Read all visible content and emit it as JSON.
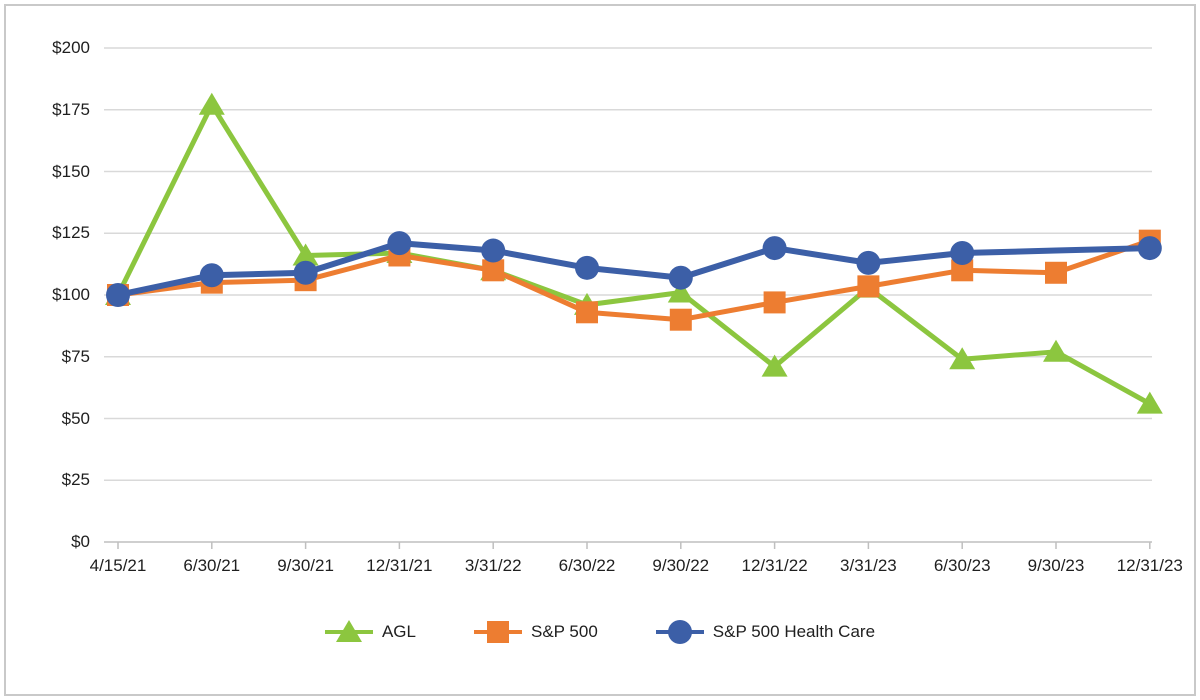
{
  "chart_data": {
    "type": "line",
    "title": "",
    "xlabel": "",
    "ylabel": "",
    "ylim": [
      0,
      200
    ],
    "y_tick_step": 25,
    "y_tick_prefix": "$",
    "y_tick_labels": [
      "$0",
      "$25",
      "$50",
      "$75",
      "$100",
      "$125",
      "$150",
      "$175",
      "$200"
    ],
    "grid": true,
    "legend_position": "bottom",
    "categories": [
      "4/15/21",
      "6/30/21",
      "9/30/21",
      "12/31/21",
      "3/31/22",
      "6/30/22",
      "9/30/22",
      "12/31/22",
      "3/31/23",
      "6/30/23",
      "9/30/23",
      "12/31/23"
    ],
    "series": [
      {
        "name": "AGL",
        "marker": "triangle",
        "color": "#8CC63F",
        "line_width": 5,
        "values": [
          100,
          177,
          116,
          117,
          110,
          96,
          101,
          71,
          103,
          74,
          77,
          56
        ]
      },
      {
        "name": "S&P 500",
        "marker": "square",
        "color": "#ED7D31",
        "line_width": 5,
        "values": [
          100,
          105,
          106,
          116,
          110,
          93,
          90,
          97,
          103.5,
          110,
          109,
          122
        ]
      },
      {
        "name": "S&P 500 Health Care",
        "marker": "circle",
        "color": "#3C5FA7",
        "line_width": 6,
        "values": [
          100,
          108,
          109,
          121,
          118,
          111,
          107,
          119,
          113,
          117,
          118,
          119
        ],
        "hidden_markers": [
          10
        ]
      }
    ]
  },
  "colors": {
    "background": "#FFFFFF",
    "frame_border": "#C9C9C9",
    "gridline": "#D9D9D9",
    "axis_line": "#BFBFBF",
    "text": "#1F1F1F"
  }
}
